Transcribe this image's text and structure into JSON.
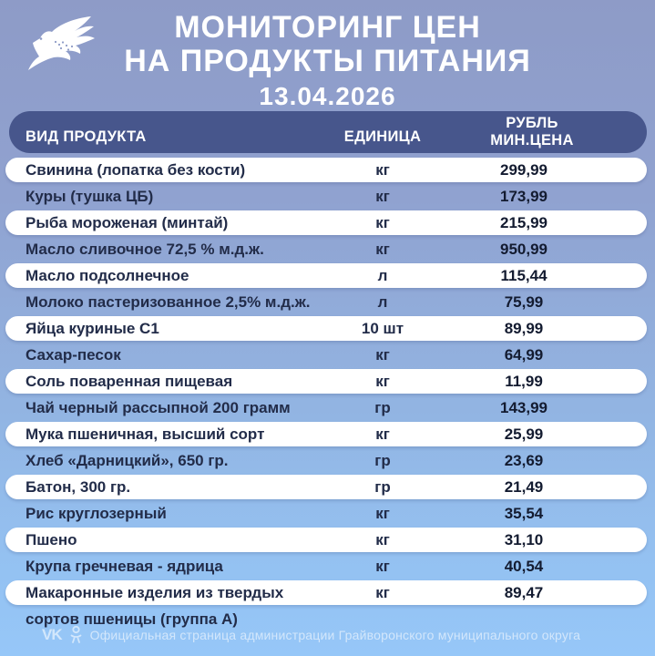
{
  "header": {
    "title_line1": "МОНИТОРИНГ ЦЕН",
    "title_line2": "НА ПРОДУКТЫ ПИТАНИЯ",
    "date": "13.04.2026",
    "logo": "bird-logo"
  },
  "table": {
    "columns": {
      "product": "ВИД ПРОДУКТА",
      "unit": "ЕДИНИЦА",
      "price_line1": "РУБЛЬ",
      "price_line2": "МИН.ЦЕНА"
    },
    "rows": [
      {
        "name": "Свинина (лопатка без кости)",
        "unit": "кг",
        "price": "299,99"
      },
      {
        "name": "Куры (тушка ЦБ)",
        "unit": "кг",
        "price": "173,99"
      },
      {
        "name": "Рыба мороженая (минтай)",
        "unit": "кг",
        "price": "215,99"
      },
      {
        "name": "Масло сливочное 72,5 % м.д.ж.",
        "unit": "кг",
        "price": "950,99"
      },
      {
        "name": "Масло подсолнечное",
        "unit": "л",
        "price": "115,44"
      },
      {
        "name": "Молоко пастеризованное 2,5% м.д.ж.",
        "unit": "л",
        "price": "75,99"
      },
      {
        "name": "Яйца куриные С1",
        "unit": "10 шт",
        "price": "89,99"
      },
      {
        "name": "Сахар-песок",
        "unit": "кг",
        "price": "64,99"
      },
      {
        "name": "Соль поваренная пищевая",
        "unit": "кг",
        "price": "11,99"
      },
      {
        "name": "Чай черный рассыпной 200 грамм",
        "unit": "гр",
        "price": "143,99"
      },
      {
        "name": "Мука пшеничная, высший сорт",
        "unit": "кг",
        "price": "25,99"
      },
      {
        "name": "Хлеб «Дарницкий», 650 гр.",
        "unit": "гр",
        "price": "23,69"
      },
      {
        "name": "Батон, 300 гр.",
        "unit": "гр",
        "price": "21,49"
      },
      {
        "name": "Рис круглозерный",
        "unit": "кг",
        "price": "35,54"
      },
      {
        "name": "Пшено",
        "unit": "кг",
        "price": "31,10"
      },
      {
        "name": "Крупа гречневая - ядрица",
        "unit": "кг",
        "price": "40,54"
      },
      {
        "name": "Макаронные изделия из твердых",
        "name2": "сортов пшеницы (группа А)",
        "unit": "кг",
        "price": "89,47"
      }
    ]
  },
  "footer": {
    "vk_label": "VK",
    "icons": [
      "vk-icon",
      "ok-icon"
    ],
    "text": "Официальная страница администрации Грайворонского муниципального округа"
  },
  "colors": {
    "bg_top": "#8E9BC7",
    "bg_bottom": "#96C7F8",
    "header_pill": "#47568C",
    "row_pill": "#FFFFFF",
    "row_text": "#222C49",
    "title_text": "#FFFFFF",
    "footer_text": "rgba(255,255,255,0.58)"
  }
}
